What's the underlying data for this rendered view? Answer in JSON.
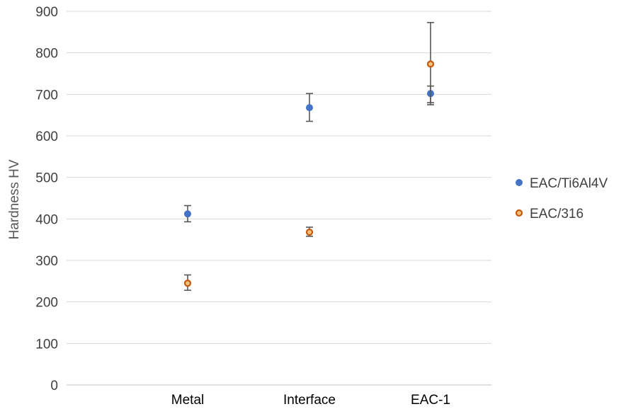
{
  "chart_data": {
    "type": "scatter",
    "categories": [
      "Metal",
      "Interface",
      "EAC-1"
    ],
    "ylabel": "Hardness HV",
    "xlabel": "",
    "ylim": [
      0,
      900
    ],
    "yticks": [
      0,
      100,
      200,
      300,
      400,
      500,
      600,
      700,
      800,
      900
    ],
    "grid": true,
    "legend_position": "right",
    "series": [
      {
        "name": "EAC/Ti6Al4V",
        "marker": "filled-circle",
        "color": "#4472C4",
        "values": [
          412,
          668,
          702
        ],
        "error": [
          [
            393,
            432
          ],
          [
            635,
            702
          ],
          [
            675,
            720
          ]
        ]
      },
      {
        "name": "EAC/316",
        "marker": "ringed-circle",
        "color": "#C55A11",
        "fill": "#F4C17A",
        "values": [
          245,
          368,
          773
        ],
        "error": [
          [
            228,
            265
          ],
          [
            358,
            380
          ],
          [
            680,
            873
          ]
        ]
      }
    ]
  }
}
